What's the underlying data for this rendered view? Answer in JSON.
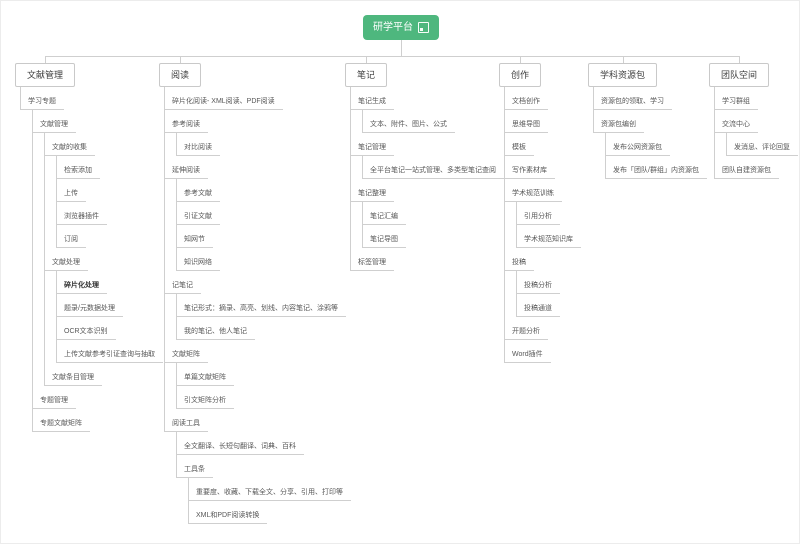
{
  "root": {
    "label": "研学平台",
    "icon": "frame-icon"
  },
  "colors": {
    "root_bg": "#4eb77e",
    "root_text": "#ffffff",
    "line": "#cfcfcf",
    "box_border": "#c9c9c9",
    "node_text": "#575757"
  },
  "branches": [
    {
      "label": "文献管理",
      "children": [
        {
          "label": "学习专题",
          "children": [
            {
              "label": "文献管理",
              "children": [
                {
                  "label": "文献的收集",
                  "children": [
                    {
                      "label": "检索添加"
                    },
                    {
                      "label": "上传"
                    },
                    {
                      "label": "浏览器插件"
                    },
                    {
                      "label": "订阅"
                    }
                  ]
                },
                {
                  "label": "文献处理",
                  "children": [
                    {
                      "label": "碎片化处理",
                      "bold": true
                    },
                    {
                      "label": "题录/元数据处理"
                    },
                    {
                      "label": "OCR文本识别"
                    },
                    {
                      "label": "上传文献参考引证查询与抽取"
                    }
                  ]
                },
                {
                  "label": "文献条目管理"
                }
              ]
            },
            {
              "label": "专题管理"
            },
            {
              "label": "专题文献矩阵"
            }
          ]
        }
      ]
    },
    {
      "label": "阅读",
      "children": [
        {
          "label": "碎片化阅读- XML阅读、PDF阅读"
        },
        {
          "label": "参考阅读",
          "children": [
            {
              "label": "对比阅读"
            }
          ]
        },
        {
          "label": "延伸阅读",
          "children": [
            {
              "label": "参考文献"
            },
            {
              "label": "引证文献"
            },
            {
              "label": "知网节"
            },
            {
              "label": "知识网络"
            }
          ]
        },
        {
          "label": "记笔记",
          "children": [
            {
              "label": "笔记形式：摘录、高亮、划线、内容笔记、涂鸦等"
            },
            {
              "label": "我的笔记、他人笔记"
            }
          ]
        },
        {
          "label": "文献矩阵",
          "children": [
            {
              "label": "单篇文献矩阵"
            },
            {
              "label": "引文矩阵分析"
            }
          ]
        },
        {
          "label": "阅读工具",
          "children": [
            {
              "label": "全文翻译、长短句翻译、词典、百科"
            },
            {
              "label": "工具条",
              "children": [
                {
                  "label": "重要度、收藏、下载全文、分享、引用、打印等"
                },
                {
                  "label": "XML和PDF阅读转换"
                }
              ]
            }
          ]
        }
      ]
    },
    {
      "label": "笔记",
      "children": [
        {
          "label": "笔记生成",
          "children": [
            {
              "label": "文本、附件、图片、公式"
            }
          ]
        },
        {
          "label": "笔记管理",
          "children": [
            {
              "label": "全平台笔记一站式管理、多类型笔记查阅"
            }
          ]
        },
        {
          "label": "笔记整理",
          "children": [
            {
              "label": "笔记汇编"
            },
            {
              "label": "笔记导图"
            }
          ]
        },
        {
          "label": "标签管理"
        }
      ]
    },
    {
      "label": "创作",
      "children": [
        {
          "label": "文档创作"
        },
        {
          "label": "思维导图"
        },
        {
          "label": "模板"
        },
        {
          "label": "写作素材库"
        },
        {
          "label": "学术规范训练",
          "children": [
            {
              "label": "引用分析"
            },
            {
              "label": "学术规范知识库"
            }
          ]
        },
        {
          "label": "投稿",
          "children": [
            {
              "label": "投稿分析"
            },
            {
              "label": "投稿通道"
            }
          ]
        },
        {
          "label": "开题分析"
        },
        {
          "label": "Word插件"
        }
      ]
    },
    {
      "label": "学科资源包",
      "children": [
        {
          "label": "资源包的领取、学习"
        },
        {
          "label": "资源包编创",
          "children": [
            {
              "label": "发布公网资源包"
            },
            {
              "label": "发布「团队/群组」内资源包"
            }
          ]
        }
      ]
    },
    {
      "label": "团队空间",
      "children": [
        {
          "label": "学习群组"
        },
        {
          "label": "交流中心",
          "children": [
            {
              "label": "发消息、评论回复"
            }
          ]
        },
        {
          "label": "团队自建资源包"
        }
      ]
    }
  ]
}
